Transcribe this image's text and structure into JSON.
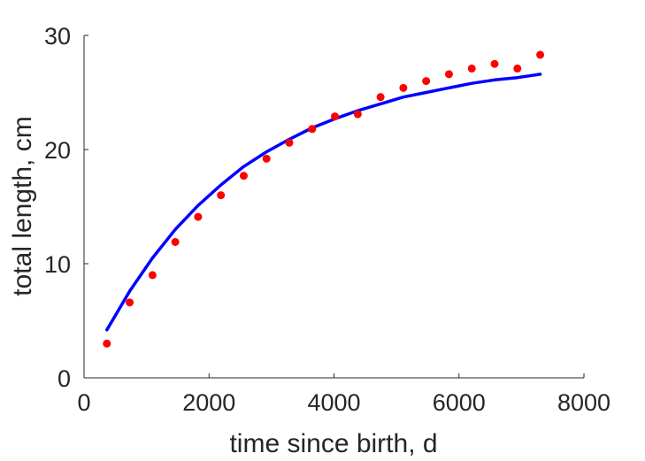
{
  "chart_data": {
    "type": "scatter",
    "xlabel": "time since birth, d",
    "ylabel": "total length, cm",
    "xlim": [
      0,
      8000
    ],
    "ylim": [
      0,
      30
    ],
    "xticks": [
      "0",
      "2000",
      "4000",
      "6000",
      "8000"
    ],
    "yticks": [
      "0",
      "10",
      "20",
      "30"
    ],
    "grid": false,
    "series": [
      {
        "kind": "points",
        "color": "#ff0000",
        "x": [
          365,
          730,
          1095,
          1460,
          1825,
          2190,
          2555,
          2920,
          3285,
          3650,
          4015,
          4380,
          4745,
          5110,
          5475,
          5840,
          6205,
          6570,
          6935,
          7300
        ],
        "y": [
          3.0,
          6.6,
          9.0,
          11.9,
          14.1,
          16.0,
          17.7,
          19.2,
          20.6,
          21.8,
          22.9,
          23.1,
          24.6,
          25.4,
          26.0,
          26.6,
          27.1,
          27.5,
          27.1,
          28.3
        ]
      },
      {
        "kind": "line",
        "color": "#0000ff",
        "x": [
          365,
          730,
          1095,
          1460,
          1825,
          2190,
          2555,
          2920,
          3285,
          3650,
          4015,
          4380,
          4745,
          5110,
          5475,
          5840,
          6205,
          6570,
          6935,
          7300
        ],
        "y": [
          4.2,
          7.6,
          10.5,
          13.0,
          15.1,
          16.9,
          18.5,
          19.8,
          20.9,
          21.9,
          22.7,
          23.4,
          24.0,
          24.6,
          25.0,
          25.4,
          25.8,
          26.1,
          26.3,
          26.6
        ]
      }
    ]
  }
}
